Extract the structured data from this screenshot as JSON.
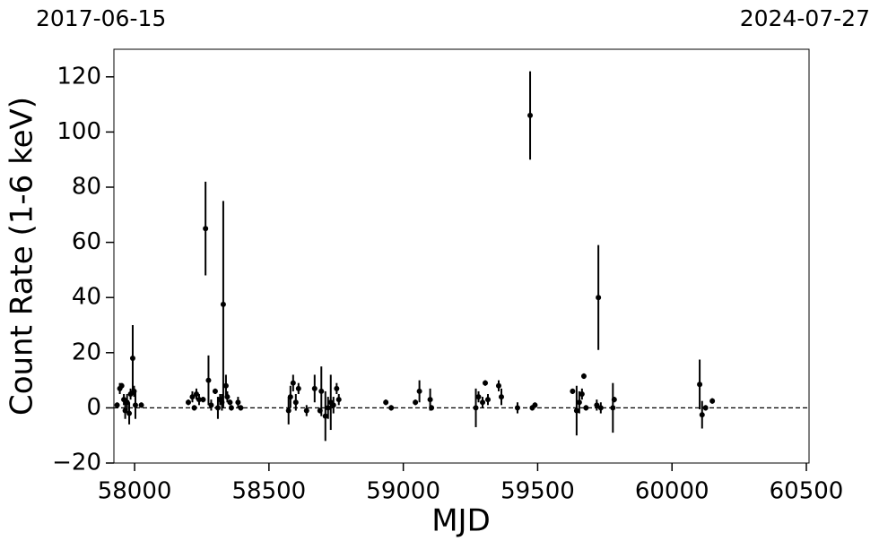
{
  "chart_data": {
    "type": "errorbar",
    "xlabel": "MJD",
    "ylabel": "Count Rate (1-6 keV)",
    "top_left_label": "2017-06-15",
    "top_right_label": "2024-07-27",
    "xlim": [
      57923,
      60510
    ],
    "ylim": [
      -20,
      130
    ],
    "xticks": [
      58000,
      58500,
      59000,
      59500,
      60000,
      60500
    ],
    "yticks": [
      {
        "value": -20,
        "label": "−20"
      },
      0,
      20,
      40,
      60,
      80,
      100,
      120
    ],
    "hline": 0,
    "color": "#000000",
    "x": [
      57935,
      57945,
      57952,
      57960,
      57965,
      57972,
      57980,
      57985,
      57993,
      57998,
      58003,
      58025,
      58200,
      58215,
      58222,
      58230,
      58240,
      58255,
      58264,
      58275,
      58285,
      58300,
      58310,
      58318,
      58325,
      58330,
      58340,
      58345,
      58355,
      58360,
      58385,
      58395,
      58573,
      58580,
      58590,
      58600,
      58610,
      58640,
      58670,
      58690,
      58695,
      58710,
      58720,
      58730,
      58740,
      58752,
      58760,
      58935,
      58955,
      59045,
      59060,
      59100,
      59105,
      59270,
      59280,
      59295,
      59305,
      59315,
      59355,
      59365,
      59425,
      59472,
      59480,
      59490,
      59630,
      59645,
      59655,
      59665,
      59672,
      59680,
      59720,
      59726,
      59735,
      59780,
      59785,
      60103,
      60112,
      60125,
      60150
    ],
    "series": [
      {
        "values": [
          1,
          7,
          8,
          3,
          -1,
          2,
          -2,
          5,
          18,
          6,
          1,
          1,
          2,
          4,
          0,
          5,
          3,
          3,
          65,
          10,
          1,
          6,
          0,
          3,
          2,
          37.5,
          8,
          4,
          2,
          0,
          2,
          0,
          -1,
          4,
          9,
          2,
          7,
          -1,
          7,
          -1,
          6,
          -3,
          0,
          2,
          1,
          7,
          3,
          2,
          0,
          2,
          6,
          3,
          0,
          0,
          4,
          2,
          9,
          3,
          8,
          4,
          0,
          106,
          0,
          1,
          6,
          -1,
          2,
          5,
          11.5,
          0,
          1,
          40,
          0,
          0,
          3,
          8.5,
          -2.5,
          0,
          2.5
        ],
        "errors": [
          1,
          2,
          1,
          2,
          3,
          3,
          4,
          2,
          12,
          2,
          5,
          1,
          1,
          2,
          1,
          2,
          2,
          1,
          17,
          9,
          2,
          1,
          4,
          2,
          3,
          37.5,
          4,
          2,
          1,
          1,
          2,
          1,
          5,
          4,
          3,
          3,
          2,
          2,
          5,
          1,
          9,
          9,
          4,
          10,
          3,
          2,
          2,
          1,
          1,
          1,
          4,
          4,
          1,
          7,
          2,
          2,
          1,
          2,
          2,
          3,
          2,
          16,
          1,
          1,
          1,
          9,
          4,
          2,
          1,
          1,
          2,
          19,
          2,
          9,
          1,
          9,
          5,
          1,
          1
        ]
      }
    ]
  }
}
